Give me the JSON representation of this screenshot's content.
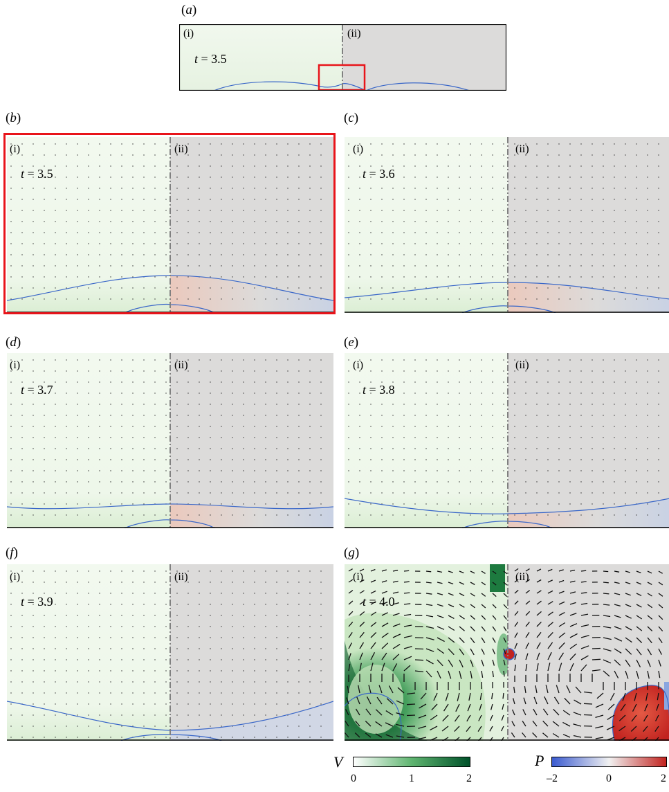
{
  "panels": [
    {
      "id": "a",
      "label": "a",
      "time": "3.5",
      "left": "(i)",
      "right": "(ii)"
    },
    {
      "id": "b",
      "label": "b",
      "time": "3.5",
      "left": "(i)",
      "right": "(ii)"
    },
    {
      "id": "c",
      "label": "c",
      "time": "3.6",
      "left": "(i)",
      "right": "(ii)"
    },
    {
      "id": "d",
      "label": "d",
      "time": "3.7",
      "left": "(i)",
      "right": "(ii)"
    },
    {
      "id": "e",
      "label": "e",
      "time": "3.8",
      "left": "(i)",
      "right": "(ii)"
    },
    {
      "id": "f",
      "label": "f",
      "time": "3.9",
      "left": "(i)",
      "right": "(ii)"
    },
    {
      "id": "g",
      "label": "g",
      "time": "4.0",
      "left": "(i)",
      "right": "(ii)"
    }
  ],
  "time_symbol": "t",
  "colorbars": {
    "V": {
      "symbol": "V",
      "ticks": [
        "0",
        "1",
        "2"
      ],
      "colors": [
        "#ffffff",
        "#5fb570",
        "#00522a"
      ]
    },
    "P": {
      "symbol": "P",
      "ticks": [
        "–2",
        "0",
        "2"
      ],
      "colors": [
        "#3b5bd0",
        "#f1f1f1",
        "#c2231f"
      ]
    }
  },
  "colors": {
    "interface": "#3a67c8",
    "highlight_box": "#e8141a",
    "right_background": "#dcdbda",
    "left_background": "#eef7ea",
    "divider": "#808080"
  }
}
